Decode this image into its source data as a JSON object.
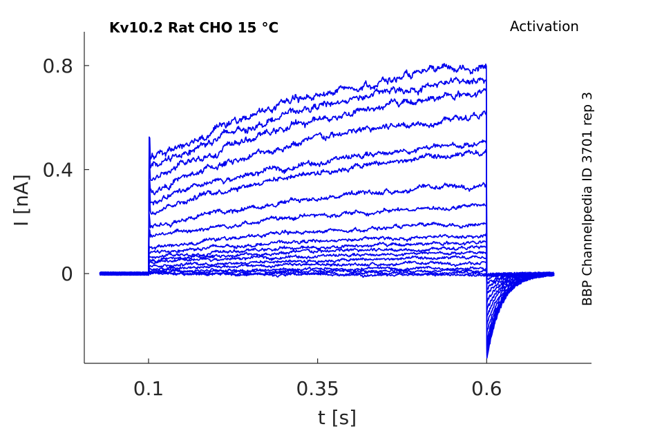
{
  "chart_data": {
    "type": "line",
    "title": "Kv10.2  Rat  CHO  15 °C",
    "protocol_label": "Activation",
    "side_label": "BBP Channelpedia ID 3701 rep 3",
    "xlabel": "t [s]",
    "ylabel": "I [nA]",
    "xlim": [
      0.005,
      0.755
    ],
    "ylim": [
      -0.345,
      0.93
    ],
    "xticks": [
      0.1,
      0.35,
      0.6
    ],
    "xtick_labels": [
      "0.1",
      "0.35",
      "0.6"
    ],
    "yticks": [
      0,
      0.4,
      0.8
    ],
    "ytick_labels": [
      "0",
      "0.4",
      "0.8"
    ],
    "grid": false,
    "line_color": "#0000ee",
    "pulse_on": 0.1,
    "pulse_off": 0.6,
    "trace_t_start": 0.028,
    "trace_t_end": 0.7,
    "series": [
      {
        "onset": 0.0,
        "end": -0.005,
        "tail": -0.005
      },
      {
        "onset": 0.0,
        "end": 0.0,
        "tail": -0.005
      },
      {
        "onset": 0.005,
        "end": 0.01,
        "tail": -0.01
      },
      {
        "onset": 0.01,
        "end": 0.02,
        "tail": -0.02
      },
      {
        "onset": 0.02,
        "end": 0.04,
        "tail": -0.04
      },
      {
        "onset": 0.03,
        "end": 0.06,
        "tail": -0.06
      },
      {
        "onset": 0.04,
        "end": 0.08,
        "tail": -0.08
      },
      {
        "onset": 0.05,
        "end": 0.1,
        "tail": -0.11
      },
      {
        "onset": 0.06,
        "end": 0.12,
        "tail": -0.14
      },
      {
        "onset": 0.08,
        "end": 0.145,
        "tail": -0.17
      },
      {
        "onset": 0.1,
        "end": 0.19,
        "tail": -0.2
      },
      {
        "onset": 0.14,
        "end": 0.26,
        "tail": -0.23
      },
      {
        "onset": 0.18,
        "end": 0.34,
        "tail": -0.26
      },
      {
        "onset": 0.24,
        "end": 0.46,
        "tail": -0.28
      },
      {
        "onset": 0.27,
        "end": 0.5,
        "tail": -0.29
      },
      {
        "onset": 0.31,
        "end": 0.61,
        "tail": -0.3
      },
      {
        "onset": 0.35,
        "end": 0.7,
        "tail": -0.31
      },
      {
        "onset": 0.4,
        "end": 0.75,
        "tail": -0.32
      },
      {
        "onset": 0.43,
        "end": 0.8,
        "tail": -0.33
      }
    ]
  }
}
